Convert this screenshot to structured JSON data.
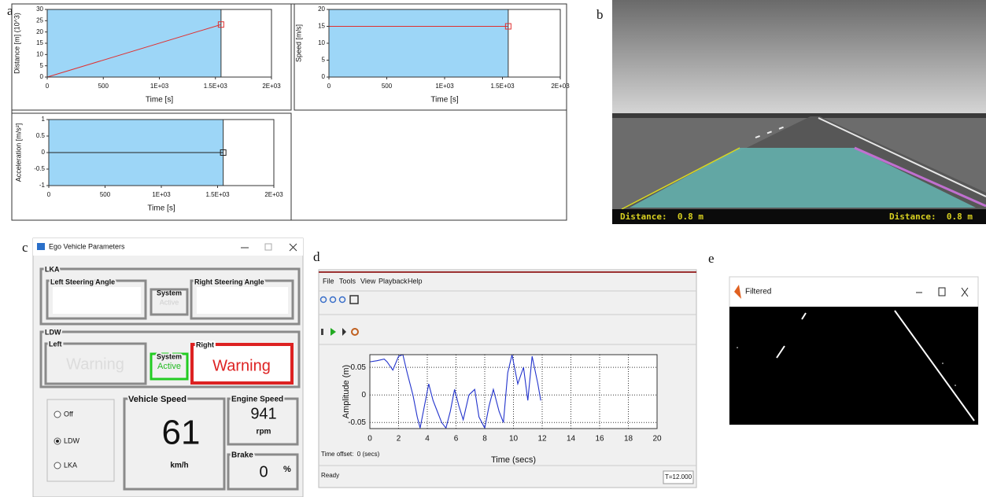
{
  "panel_labels": [
    "a",
    "b",
    "c",
    "d",
    "e"
  ],
  "chart_data": [
    {
      "type": "line",
      "xlabel": "Time [s]",
      "ylabel": "Distance [m] (10^3)",
      "x": [
        0,
        1550
      ],
      "values": [
        0,
        23.3
      ],
      "color": "#e03030",
      "xlim": [
        0,
        2000
      ],
      "ylim": [
        0,
        30
      ],
      "xticks": [
        0,
        500,
        {
          "value": 1000,
          "label": "1E+03"
        },
        {
          "value": 1500,
          "label": "1.5E+03"
        },
        {
          "value": 2000,
          "label": "2E+03"
        }
      ],
      "yticks": [
        0,
        5,
        10,
        15,
        20,
        25,
        30
      ],
      "grid": false
    },
    {
      "type": "line",
      "xlabel": "Time [s]",
      "ylabel": "Speed [m/s]",
      "x": [
        0,
        1550
      ],
      "values": [
        15,
        15
      ],
      "color": "#e03030",
      "xlim": [
        0,
        2000
      ],
      "ylim": [
        0,
        20
      ],
      "xticks": [
        0,
        500,
        {
          "value": 1000,
          "label": "1E+03"
        },
        {
          "value": 1500,
          "label": "1.5E+03"
        },
        {
          "value": 2000,
          "label": "2E+03"
        }
      ],
      "yticks": [
        0,
        5,
        10,
        15,
        20
      ],
      "grid": false
    },
    {
      "type": "line",
      "xlabel": "Time [s]",
      "ylabel": "Acceleration [m/s²]",
      "x": [
        0,
        1550
      ],
      "values": [
        0,
        0
      ],
      "color": "#222222",
      "xlim": [
        0,
        2000
      ],
      "ylim": [
        -1,
        1
      ],
      "xticks": [
        0,
        500,
        {
          "value": 1000,
          "label": "1E+03"
        },
        {
          "value": 1500,
          "label": "1.5E+03"
        },
        {
          "value": 2000,
          "label": "2E+03"
        }
      ],
      "yticks": [
        -1,
        -0.5,
        0,
        0.5,
        1
      ],
      "grid": false
    },
    {
      "type": "line",
      "xlabel": "Time (secs)",
      "ylabel": "Amplitude (m)",
      "x": [
        0,
        0.5,
        1,
        1.2,
        1.6,
        2,
        2.3,
        2.6,
        3,
        3.3,
        3.5,
        3.8,
        4.1,
        4.4,
        4.7,
        5,
        5.3,
        5.6,
        5.9,
        6.2,
        6.5,
        6.9,
        7.3,
        7.6,
        8,
        8.3,
        8.6,
        9,
        9.3,
        9.6,
        9.9,
        10.3,
        10.7,
        11,
        11.3,
        11.7,
        11.9
      ],
      "values": [
        0.06,
        0.062,
        0.065,
        0.06,
        0.045,
        0.07,
        0.073,
        0.04,
        0.0,
        -0.04,
        -0.06,
        -0.02,
        0.02,
        -0.01,
        -0.03,
        -0.05,
        -0.06,
        -0.03,
        0.01,
        -0.02,
        -0.045,
        0.0,
        0.01,
        -0.04,
        -0.06,
        -0.02,
        0.01,
        -0.03,
        -0.05,
        0.04,
        0.073,
        0.02,
        0.05,
        -0.01,
        0.07,
        0.02,
        -0.01
      ],
      "color": "#2233cc",
      "xlim": [
        0,
        20
      ],
      "ylim": [
        -0.061,
        0.073
      ],
      "xticks": [
        0,
        2,
        4,
        6,
        8,
        10,
        12,
        14,
        16,
        18,
        20
      ],
      "yticks": [
        -0.05,
        0,
        0.05
      ],
      "grid": true
    }
  ],
  "simulation_view": {
    "distance_left": "Distance:  0.8 m",
    "distance_right": "Distance:  0.8 m"
  },
  "ego_vehicle_window": {
    "title": "Ego Vehicle Parameters",
    "lka": {
      "label": "LKA",
      "left": "Left Steering Angle",
      "system": "System",
      "status": "Active",
      "right": "Right Steering Angle"
    },
    "ldw": {
      "label": "LDW",
      "left": "Left",
      "left_status": "Warning",
      "system": "System",
      "status": "Active",
      "right": "Right",
      "right_status": "Warning"
    },
    "modes": [
      "Off",
      "LDW",
      "LKA"
    ],
    "vehicle_speed": {
      "label": "Vehicle Speed",
      "value": 61,
      "unit": "km/h"
    },
    "engine_speed": {
      "label": "Engine Speed",
      "value": 941,
      "unit": "rpm"
    },
    "brake": {
      "label": "Brake",
      "value": 0,
      "unit": "%"
    }
  },
  "scope_window": {
    "menu": [
      "File",
      "Tools",
      "View",
      "Playback",
      "Help"
    ],
    "time_offset": "Time offset:  0 (secs)",
    "status": "Ready",
    "time": "T=12.000"
  },
  "filtered_window": {
    "title": "Filtered"
  }
}
